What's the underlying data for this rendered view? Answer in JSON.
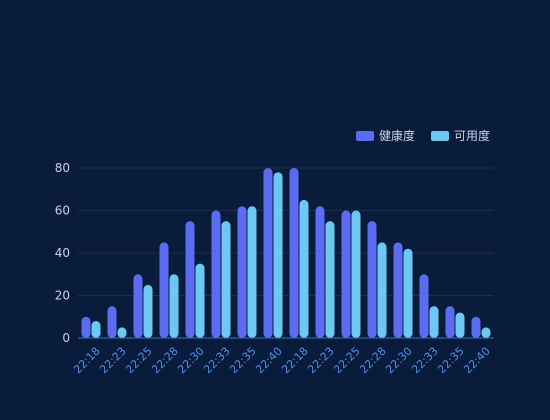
{
  "chart_data": {
    "type": "bar",
    "title": "",
    "xlabel": "",
    "ylabel": "",
    "categories": [
      "22:18",
      "22:23",
      "22:25",
      "22:28",
      "22:30",
      "22:33",
      "22:35",
      "22:40",
      "22:18",
      "22:23",
      "22:25",
      "22:28",
      "22:30",
      "22:33",
      "22:35",
      "22:40"
    ],
    "series": [
      {
        "name": "健康度",
        "color": "#5b6cf0",
        "values": [
          10,
          15,
          30,
          45,
          55,
          60,
          62,
          80,
          80,
          62,
          60,
          55,
          45,
          30,
          15,
          10
        ]
      },
      {
        "name": "可用度",
        "color": "#6cc8f0",
        "values": [
          8,
          5,
          25,
          30,
          35,
          55,
          62,
          78,
          65,
          55,
          60,
          45,
          42,
          15,
          12,
          5
        ]
      }
    ],
    "ylim": [
      0,
      80
    ],
    "yticks": [
      0,
      20,
      40,
      60,
      80
    ],
    "grid": true,
    "legend_position": "top-right",
    "x_label_rotation": "rotated 45 degrees",
    "colors": {
      "background": "#0a1c3b",
      "gridline": "#1d2e4f",
      "axis_line": "#3a6fc0",
      "x_tick_text": "#4f8fe6",
      "y_tick_text": "#c9d3e6",
      "legend_text": "#c9d3e6"
    }
  }
}
